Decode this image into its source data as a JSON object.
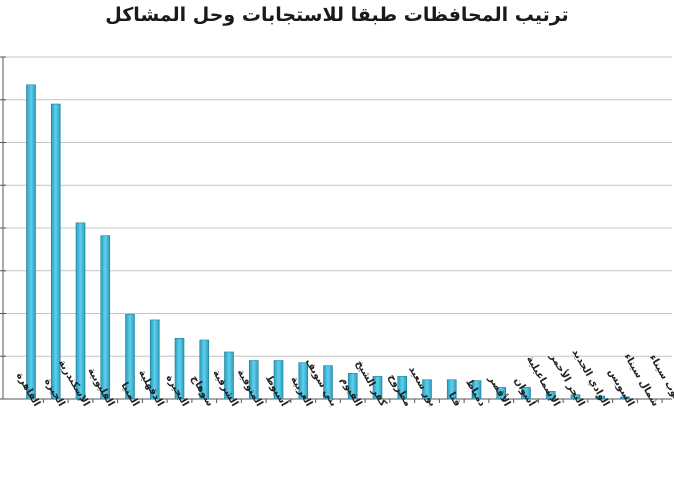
{
  "chart_data": {
    "type": "bar",
    "title": "ترتيب المحافظات طبقا  للاستجابات وحل المشاكل",
    "categories": [
      "القاهرة",
      "الجيزة",
      "الإسكندرية",
      "القليوبية",
      "المنيا",
      "الدقهلية",
      "البحيرة",
      "سوهاج",
      "الشرقية",
      "المنوفية",
      "أسيوط",
      "الغربية",
      "بني سويف",
      "الفيوم",
      "كفر الشيخ",
      "مطروح",
      "بور سعيد",
      "قنا",
      "دمياط",
      "الأقصر",
      "أسوان",
      "الإسماعيلية",
      "البحر الأحمر",
      "الوادي الجديد",
      "السويس",
      "شمال سيناء",
      "جنوب سيناء"
    ],
    "values": [
      7.35,
      6.9,
      4.12,
      3.82,
      1.98,
      1.85,
      1.42,
      1.38,
      1.1,
      0.9,
      0.9,
      0.85,
      0.78,
      0.6,
      0.53,
      0.53,
      0.45,
      0.45,
      0.43,
      0.27,
      0.27,
      0.18,
      0.1,
      0.07,
      0.05,
      0.0,
      0.0
    ],
    "ylim": [
      0,
      8
    ],
    "grid": true,
    "bar_color": "#31b0d0",
    "bar_edge_color": "#1f7f99"
  }
}
